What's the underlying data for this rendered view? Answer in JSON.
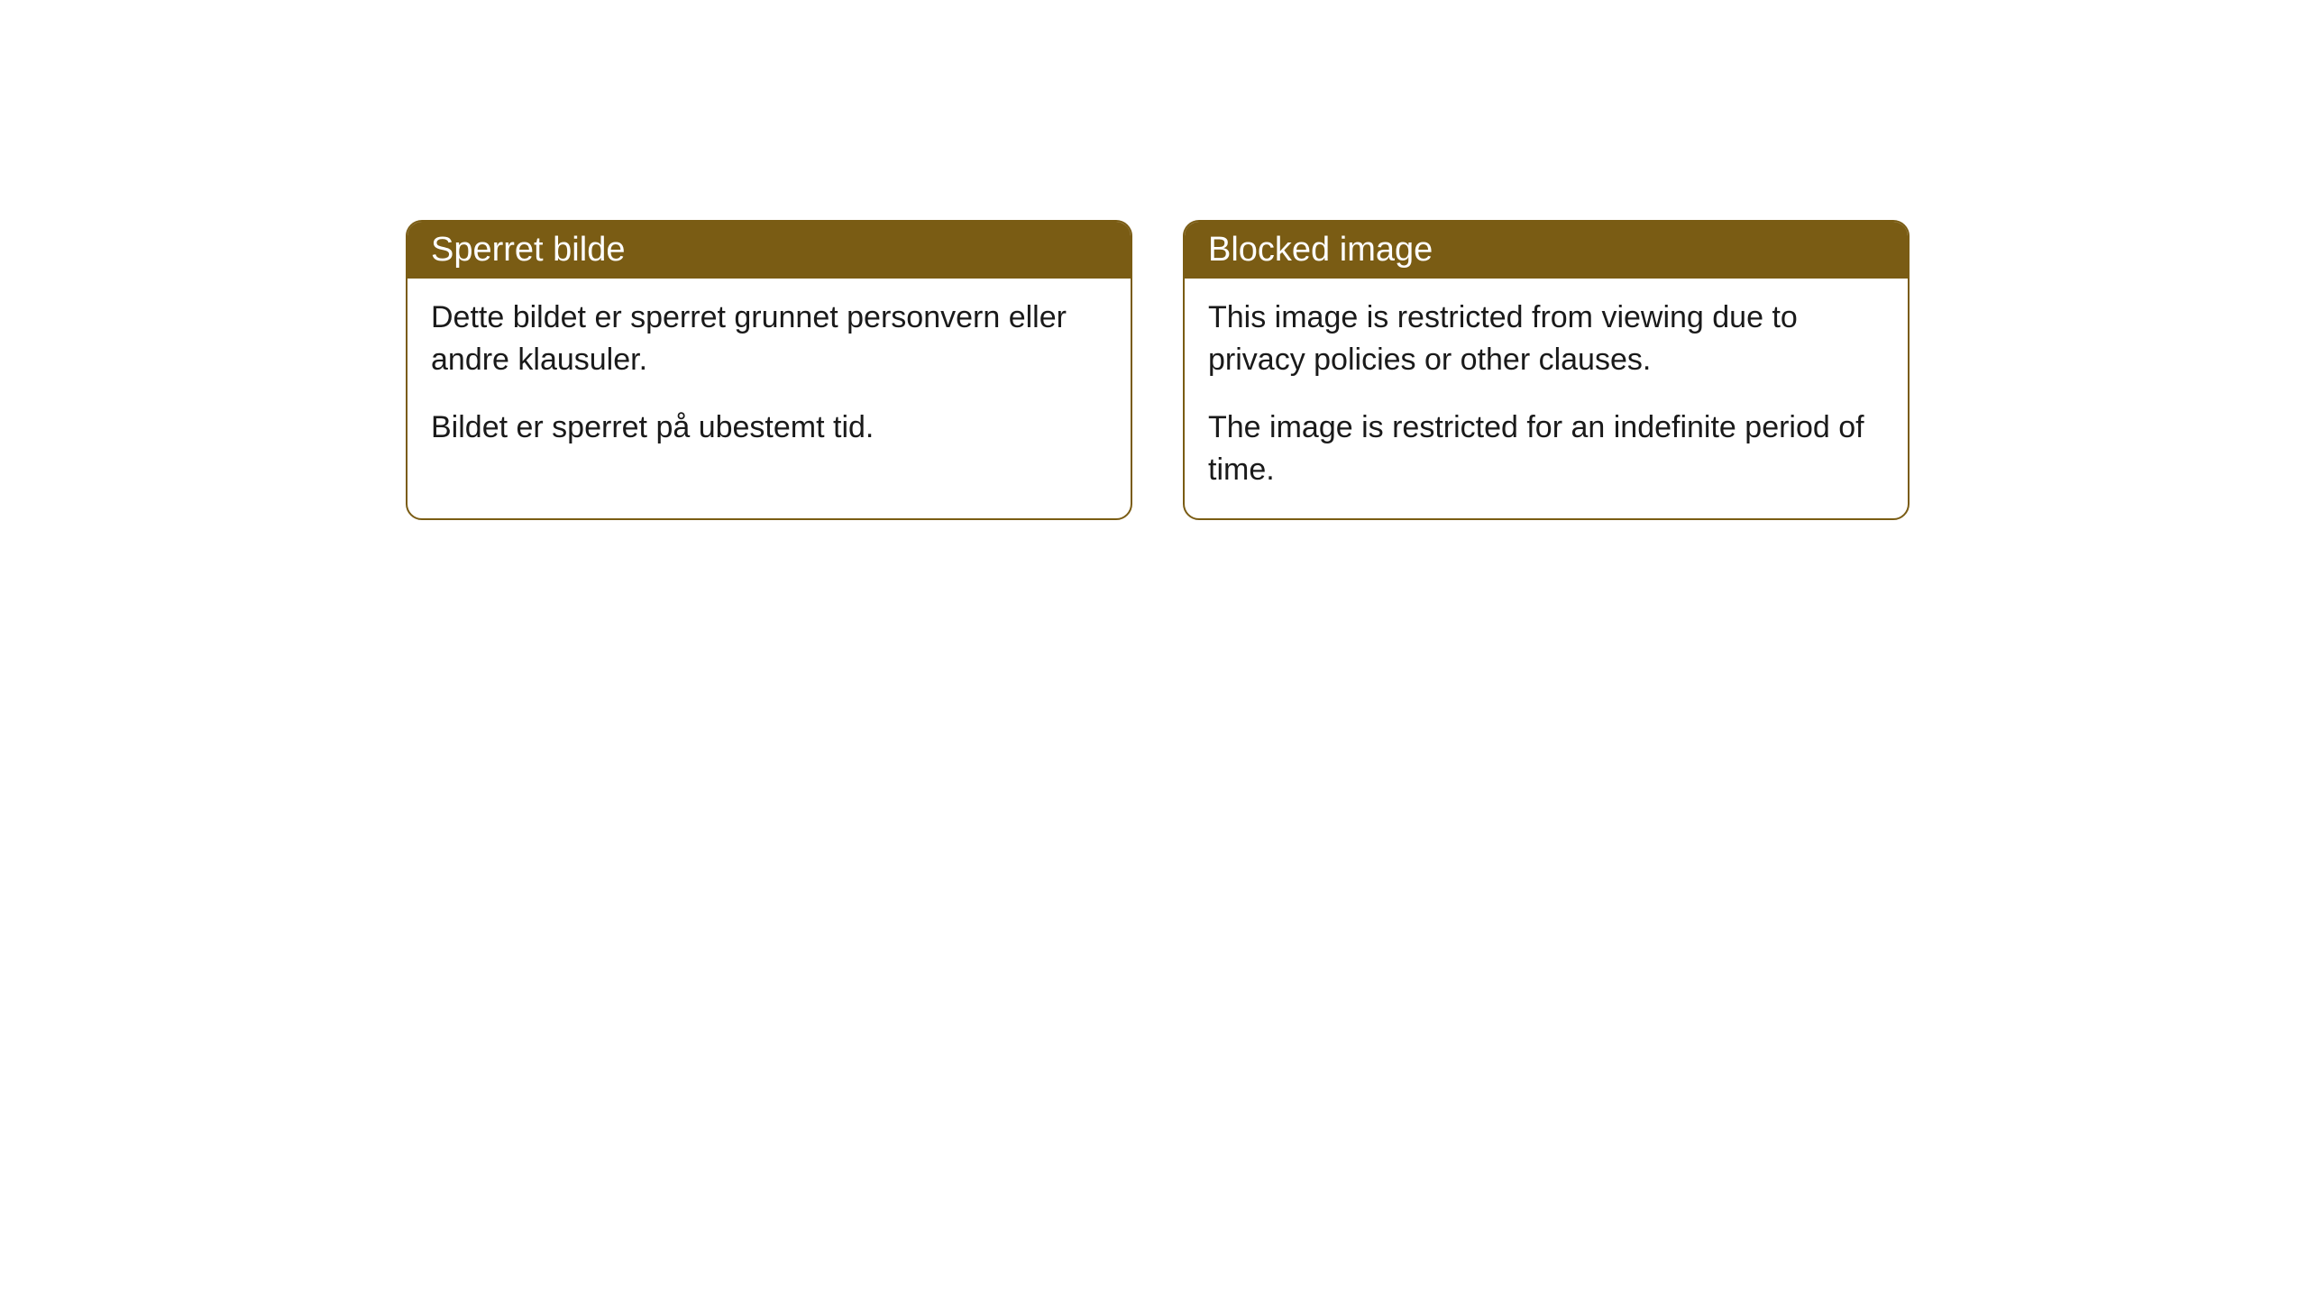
{
  "cards": [
    {
      "title": "Sperret bilde",
      "paragraph1": "Dette bildet er sperret grunnet personvern eller andre klausuler.",
      "paragraph2": "Bildet er sperret på ubestemt tid."
    },
    {
      "title": "Blocked image",
      "paragraph1": "This image is restricted from viewing due to privacy policies or other clauses.",
      "paragraph2": "The image is restricted for an indefinite period of time."
    }
  ],
  "styling": {
    "header_bg_color": "#7a5c14",
    "header_text_color": "#ffffff",
    "border_color": "#7a5c14",
    "body_bg_color": "#ffffff",
    "body_text_color": "#1a1a1a",
    "border_radius": 18,
    "title_fontsize": 38,
    "body_fontsize": 34
  }
}
